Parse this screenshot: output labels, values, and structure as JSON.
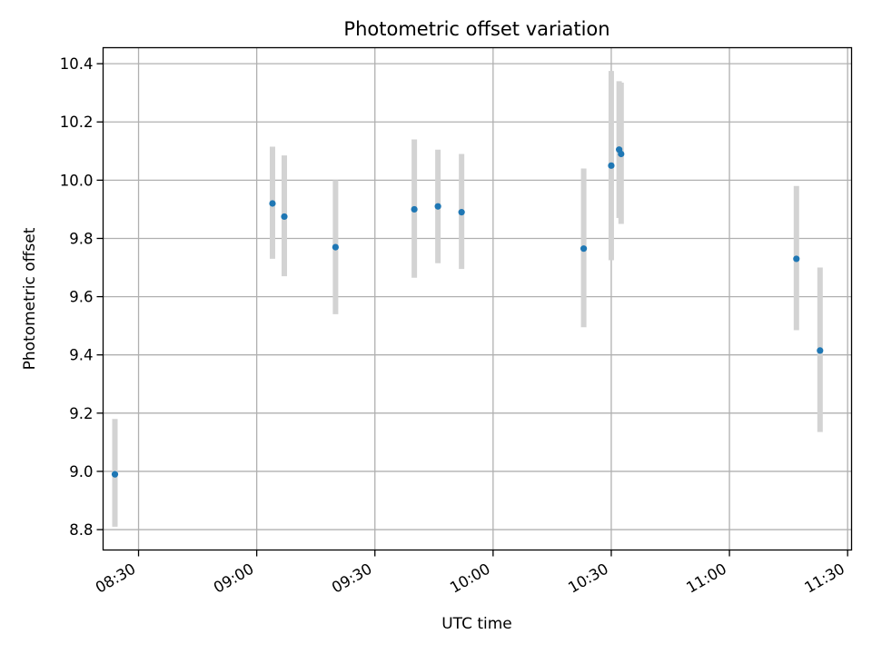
{
  "chart_data": {
    "type": "scatter",
    "title": "Photometric offset variation",
    "xlabel": "UTC time",
    "ylabel": "Photometric offset",
    "x_axis_kind": "time",
    "xlim": [
      "08:21",
      "11:31"
    ],
    "ylim": [
      8.73,
      10.455
    ],
    "x_ticks": [
      "08:30",
      "09:00",
      "09:30",
      "10:00",
      "10:30",
      "11:00",
      "11:30"
    ],
    "y_ticks": [
      "8.8",
      "9.0",
      "9.2",
      "9.4",
      "9.6",
      "9.8",
      "10.0",
      "10.2",
      "10.4"
    ],
    "grid": true,
    "point_color": "#1f77b4",
    "errorbar_color": "#d3d3d3",
    "points": [
      {
        "x": "08:24",
        "y": 8.99,
        "ylow": 8.81,
        "yhigh": 9.18
      },
      {
        "x": "09:04",
        "y": 9.92,
        "ylow": 9.73,
        "yhigh": 10.115
      },
      {
        "x": "09:07",
        "y": 9.875,
        "ylow": 9.67,
        "yhigh": 10.085
      },
      {
        "x": "09:20",
        "y": 9.77,
        "ylow": 9.54,
        "yhigh": 10.0
      },
      {
        "x": "09:40",
        "y": 9.9,
        "ylow": 9.665,
        "yhigh": 10.14
      },
      {
        "x": "09:46",
        "y": 9.91,
        "ylow": 9.715,
        "yhigh": 10.105
      },
      {
        "x": "09:52",
        "y": 9.89,
        "ylow": 9.695,
        "yhigh": 10.09
      },
      {
        "x": "10:23",
        "y": 9.765,
        "ylow": 9.495,
        "yhigh": 10.04
      },
      {
        "x": "10:30",
        "y": 10.05,
        "ylow": 9.725,
        "yhigh": 10.375
      },
      {
        "x": "10:32",
        "y": 10.105,
        "ylow": 9.87,
        "yhigh": 10.34
      },
      {
        "x": "10:32:30",
        "y": 10.09,
        "ylow": 9.85,
        "yhigh": 10.335
      },
      {
        "x": "11:17",
        "y": 9.73,
        "ylow": 9.485,
        "yhigh": 9.98
      },
      {
        "x": "11:23",
        "y": 9.415,
        "ylow": 9.135,
        "yhigh": 9.7
      }
    ]
  }
}
